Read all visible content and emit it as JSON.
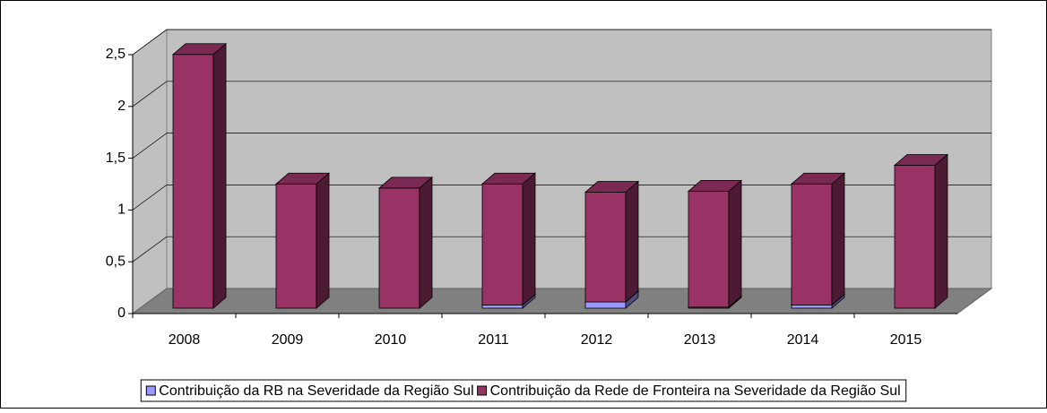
{
  "chart_data": {
    "type": "bar3d_stacked",
    "categories": [
      "2008",
      "2009",
      "2010",
      "2011",
      "2012",
      "2013",
      "2014",
      "2015"
    ],
    "series": [
      {
        "name": "Contribuição da RB na Severidade da Região Sul",
        "color": "#9999ff",
        "values": [
          0,
          0,
          0,
          0.03,
          0.06,
          0.01,
          0.03,
          0
        ]
      },
      {
        "name": "Contribuição da Rede de Fronteira na Severidade da Região Sul",
        "color": "#993366",
        "values": [
          2.45,
          1.2,
          1.16,
          1.17,
          1.06,
          1.12,
          1.17,
          1.38
        ]
      }
    ],
    "ylim": [
      0,
      2.5
    ],
    "yticks": [
      0,
      {
        "value": 0.5,
        "label": "0,5"
      },
      1,
      {
        "value": 1.5,
        "label": "1,5"
      },
      2,
      {
        "value": 2.5,
        "label": "2,5"
      }
    ],
    "grid": true,
    "legend": "bottom"
  }
}
